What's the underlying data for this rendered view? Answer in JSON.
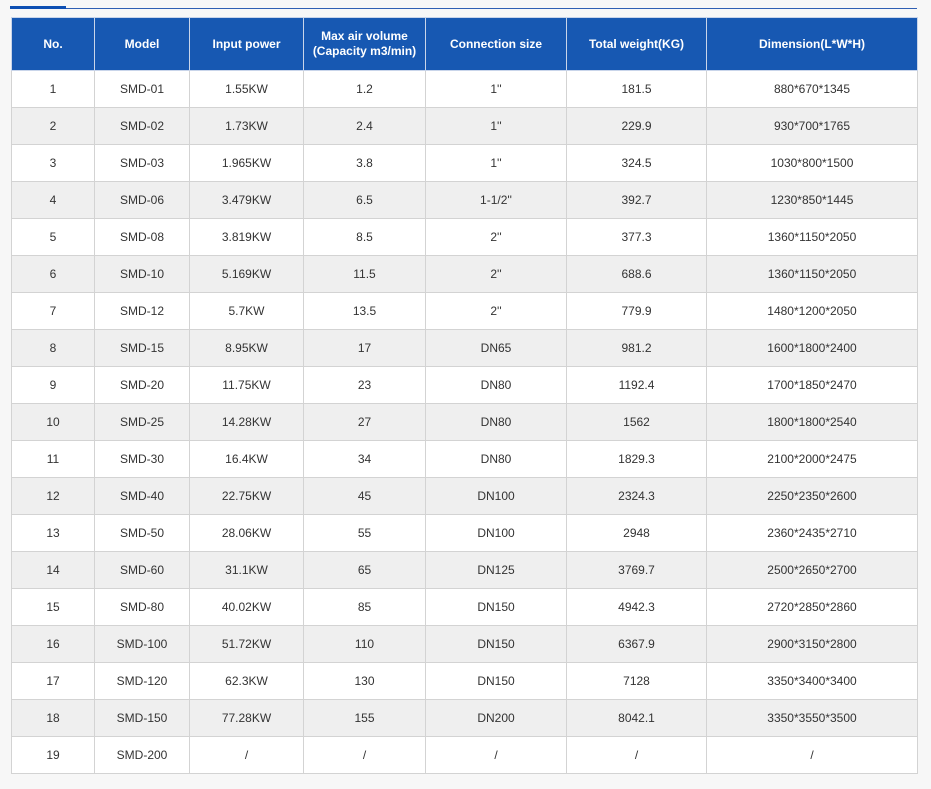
{
  "table": {
    "headers": {
      "no": "No.",
      "model": "Model",
      "input_power": "Input power",
      "max_air_volume_line1": "Max air volume",
      "max_air_volume_line2": "(Capacity m3/min)",
      "connection_size": "Connection size",
      "total_weight": "Total weight(KG)",
      "dimension": "Dimension(L*W*H)"
    },
    "rows": [
      {
        "no": "1",
        "model": "SMD-01",
        "power": "1.55KW",
        "air": "1.2",
        "conn": "1''",
        "weight": "181.5",
        "dim": "880*670*1345"
      },
      {
        "no": "2",
        "model": "SMD-02",
        "power": "1.73KW",
        "air": "2.4",
        "conn": "1''",
        "weight": "229.9",
        "dim": "930*700*1765"
      },
      {
        "no": "3",
        "model": "SMD-03",
        "power": "1.965KW",
        "air": "3.8",
        "conn": "1''",
        "weight": "324.5",
        "dim": "1030*800*1500"
      },
      {
        "no": "4",
        "model": "SMD-06",
        "power": "3.479KW",
        "air": "6.5",
        "conn": "1-1/2''",
        "weight": "392.7",
        "dim": "1230*850*1445"
      },
      {
        "no": "5",
        "model": "SMD-08",
        "power": "3.819KW",
        "air": "8.5",
        "conn": "2''",
        "weight": "377.3",
        "dim": "1360*1150*2050"
      },
      {
        "no": "6",
        "model": "SMD-10",
        "power": "5.169KW",
        "air": "11.5",
        "conn": "2''",
        "weight": "688.6",
        "dim": "1360*1150*2050"
      },
      {
        "no": "7",
        "model": "SMD-12",
        "power": "5.7KW",
        "air": "13.5",
        "conn": "2''",
        "weight": "779.9",
        "dim": "1480*1200*2050"
      },
      {
        "no": "8",
        "model": "SMD-15",
        "power": "8.95KW",
        "air": "17",
        "conn": "DN65",
        "weight": "981.2",
        "dim": "1600*1800*2400"
      },
      {
        "no": "9",
        "model": "SMD-20",
        "power": "11.75KW",
        "air": "23",
        "conn": "DN80",
        "weight": "1192.4",
        "dim": "1700*1850*2470"
      },
      {
        "no": "10",
        "model": "SMD-25",
        "power": "14.28KW",
        "air": "27",
        "conn": "DN80",
        "weight": "1562",
        "dim": "1800*1800*2540"
      },
      {
        "no": "11",
        "model": "SMD-30",
        "power": "16.4KW",
        "air": "34",
        "conn": "DN80",
        "weight": "1829.3",
        "dim": "2100*2000*2475"
      },
      {
        "no": "12",
        "model": "SMD-40",
        "power": "22.75KW",
        "air": "45",
        "conn": "DN100",
        "weight": "2324.3",
        "dim": "2250*2350*2600"
      },
      {
        "no": "13",
        "model": "SMD-50",
        "power": "28.06KW",
        "air": "55",
        "conn": "DN100",
        "weight": "2948",
        "dim": "2360*2435*2710"
      },
      {
        "no": "14",
        "model": "SMD-60",
        "power": "31.1KW",
        "air": "65",
        "conn": "DN125",
        "weight": "3769.7",
        "dim": "2500*2650*2700"
      },
      {
        "no": "15",
        "model": "SMD-80",
        "power": "40.02KW",
        "air": "85",
        "conn": "DN150",
        "weight": "4942.3",
        "dim": "2720*2850*2860"
      },
      {
        "no": "16",
        "model": "SMD-100",
        "power": "51.72KW",
        "air": "110",
        "conn": "DN150",
        "weight": "6367.9",
        "dim": "2900*3150*2800"
      },
      {
        "no": "17",
        "model": "SMD-120",
        "power": "62.3KW",
        "air": "130",
        "conn": "DN150",
        "weight": "7128",
        "dim": "3350*3400*3400"
      },
      {
        "no": "18",
        "model": "SMD-150",
        "power": "77.28KW",
        "air": "155",
        "conn": "DN200",
        "weight": "8042.1",
        "dim": "3350*3550*3500"
      },
      {
        "no": "19",
        "model": "SMD-200",
        "power": "/",
        "air": "/",
        "conn": "/",
        "weight": "/",
        "dim": "/"
      }
    ]
  },
  "colors": {
    "header_bg": "#1758b2",
    "accent": "#0d4fb3",
    "row_alt_bg": "#efefef"
  }
}
